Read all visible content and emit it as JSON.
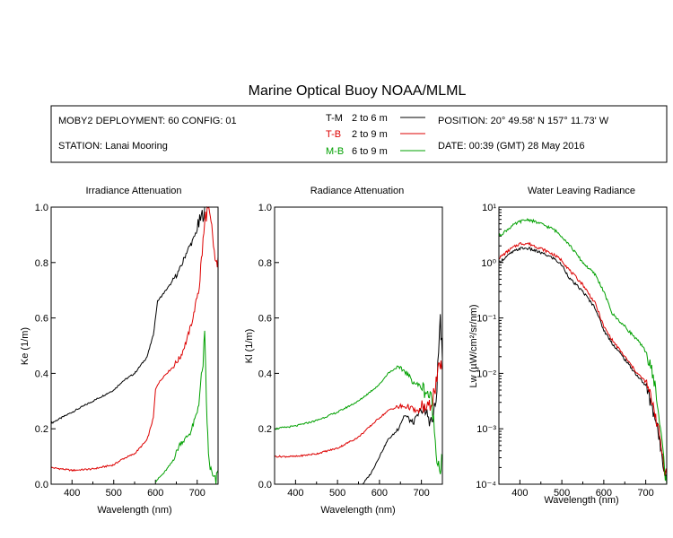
{
  "title": "Marine Optical Buoy NOAA/MLML",
  "header": {
    "deployment": "MOBY2 DEPLOYMENT: 60 CONFIG: 01",
    "station": "STATION: Lanai Mooring",
    "position": "POSITION: 20° 49.58' N   157° 11.73' W",
    "date": "DATE: 00:39 (GMT) 28 May 2016",
    "legend": [
      {
        "key": "T-M",
        "range": "2 to 6  m",
        "color": "#000000"
      },
      {
        "key": "T-B",
        "range": "2 to 9  m",
        "color": "#dd0000"
      },
      {
        "key": "M-B",
        "range": "6 to 9  m",
        "color": "#00a000"
      }
    ]
  },
  "chart_data": [
    {
      "type": "line",
      "title": "Irradiance Attenuation",
      "xlabel": "Wavelength (nm)",
      "ylabel": "Ke  (1/m)",
      "xlim": [
        350,
        750
      ],
      "ylim": [
        0,
        1
      ],
      "xticks": [
        "400",
        "500",
        "600",
        "700"
      ],
      "yticks": [
        "0.0",
        "0.2",
        "0.4",
        "0.6",
        "0.8",
        "1.0"
      ],
      "series": [
        {
          "color": "#000000",
          "x": [
            350,
            400,
            450,
            500,
            520,
            550,
            580,
            595,
            605,
            620,
            640,
            660,
            675,
            690,
            700,
            712,
            720
          ],
          "y": [
            0.22,
            0.26,
            0.3,
            0.34,
            0.37,
            0.4,
            0.46,
            0.54,
            0.66,
            0.69,
            0.73,
            0.78,
            0.84,
            0.88,
            0.92,
            0.97,
            1.0
          ]
        },
        {
          "color": "#dd0000",
          "x": [
            350,
            400,
            450,
            500,
            520,
            550,
            580,
            595,
            600,
            605,
            620,
            640,
            660,
            675,
            690,
            705,
            712,
            720,
            726,
            735,
            745,
            750
          ],
          "y": [
            0.06,
            0.05,
            0.055,
            0.07,
            0.09,
            0.11,
            0.16,
            0.24,
            0.34,
            0.36,
            0.39,
            0.42,
            0.46,
            0.52,
            0.6,
            0.72,
            0.84,
            0.97,
            0.99,
            0.92,
            0.78,
            0.82
          ]
        },
        {
          "color": "#00a000",
          "x": [
            600,
            620,
            640,
            660,
            670,
            685,
            700,
            712,
            718,
            722,
            727,
            735,
            745,
            750
          ],
          "y": [
            0.01,
            0.04,
            0.08,
            0.15,
            0.16,
            0.19,
            0.26,
            0.4,
            0.53,
            0.3,
            0.1,
            0.03,
            0.0,
            0.05
          ]
        }
      ]
    },
    {
      "type": "line",
      "title": "Radiance Attenuation",
      "xlabel": "Wavelength (nm)",
      "ylabel": "Kl  (1/m)",
      "xlim": [
        350,
        750
      ],
      "ylim": [
        0,
        1
      ],
      "xticks": [
        "400",
        "500",
        "600",
        "700"
      ],
      "yticks": [
        "0.0",
        "0.2",
        "0.4",
        "0.6",
        "0.8",
        "1.0"
      ],
      "series": [
        {
          "color": "#000000",
          "x": [
            560,
            580,
            600,
            620,
            640,
            660,
            680,
            700,
            715,
            725,
            735,
            745,
            750
          ],
          "y": [
            0.0,
            0.04,
            0.1,
            0.16,
            0.19,
            0.25,
            0.22,
            0.27,
            0.25,
            0.22,
            0.3,
            0.6,
            0.45
          ]
        },
        {
          "color": "#dd0000",
          "x": [
            350,
            400,
            450,
            500,
            550,
            600,
            625,
            650,
            670,
            690,
            705,
            715,
            725,
            735,
            745,
            750
          ],
          "y": [
            0.1,
            0.1,
            0.11,
            0.13,
            0.17,
            0.24,
            0.27,
            0.28,
            0.28,
            0.26,
            0.28,
            0.27,
            0.3,
            0.36,
            0.44,
            0.42
          ]
        },
        {
          "color": "#00a000",
          "x": [
            350,
            400,
            450,
            500,
            550,
            600,
            620,
            640,
            660,
            680,
            700,
            715,
            725,
            735,
            745,
            750
          ],
          "y": [
            0.2,
            0.21,
            0.23,
            0.26,
            0.3,
            0.36,
            0.4,
            0.42,
            0.41,
            0.37,
            0.35,
            0.33,
            0.3,
            0.12,
            0.05,
            0.1
          ]
        }
      ]
    },
    {
      "type": "line",
      "title": "Water Leaving Radiance",
      "xlabel": "Wavelength (nm)",
      "ylabel": "Lw  (µW/cm²/sr/nm)",
      "yscale": "log",
      "xlim": [
        350,
        750
      ],
      "ylim": [
        0.0001,
        10
      ],
      "xticks": [
        "400",
        "500",
        "600",
        "700"
      ],
      "yticks": [
        "10⁻⁴",
        "10⁻³",
        "10⁻²",
        "10⁻¹",
        "10⁰",
        "10¹"
      ],
      "series": [
        {
          "color": "#000000",
          "x": [
            350,
            380,
            400,
            420,
            450,
            480,
            500,
            520,
            550,
            580,
            600,
            620,
            650,
            680,
            700,
            720,
            735,
            745,
            750
          ],
          "y": [
            1.0,
            1.5,
            1.8,
            1.8,
            1.5,
            1.2,
            0.9,
            0.5,
            0.3,
            0.15,
            0.06,
            0.035,
            0.018,
            0.009,
            0.006,
            0.002,
            0.0005,
            0.0002,
            0.00015
          ]
        },
        {
          "color": "#dd0000",
          "x": [
            350,
            380,
            400,
            420,
            450,
            480,
            500,
            520,
            550,
            580,
            600,
            620,
            650,
            680,
            700,
            720,
            735,
            745,
            750
          ],
          "y": [
            1.2,
            1.8,
            2.2,
            2.2,
            1.8,
            1.4,
            1.1,
            0.7,
            0.4,
            0.18,
            0.07,
            0.04,
            0.02,
            0.01,
            0.007,
            0.0025,
            0.0006,
            0.0002,
            0.00015
          ]
        },
        {
          "color": "#00a000",
          "x": [
            350,
            380,
            400,
            420,
            450,
            480,
            500,
            520,
            550,
            580,
            600,
            620,
            650,
            680,
            700,
            720,
            735,
            745,
            750
          ],
          "y": [
            3.0,
            4.5,
            5.5,
            6.0,
            5.0,
            4.0,
            3.0,
            2.0,
            1.0,
            0.6,
            0.3,
            0.12,
            0.07,
            0.04,
            0.025,
            0.008,
            0.001,
            0.0002,
            0.0001
          ]
        }
      ]
    }
  ]
}
